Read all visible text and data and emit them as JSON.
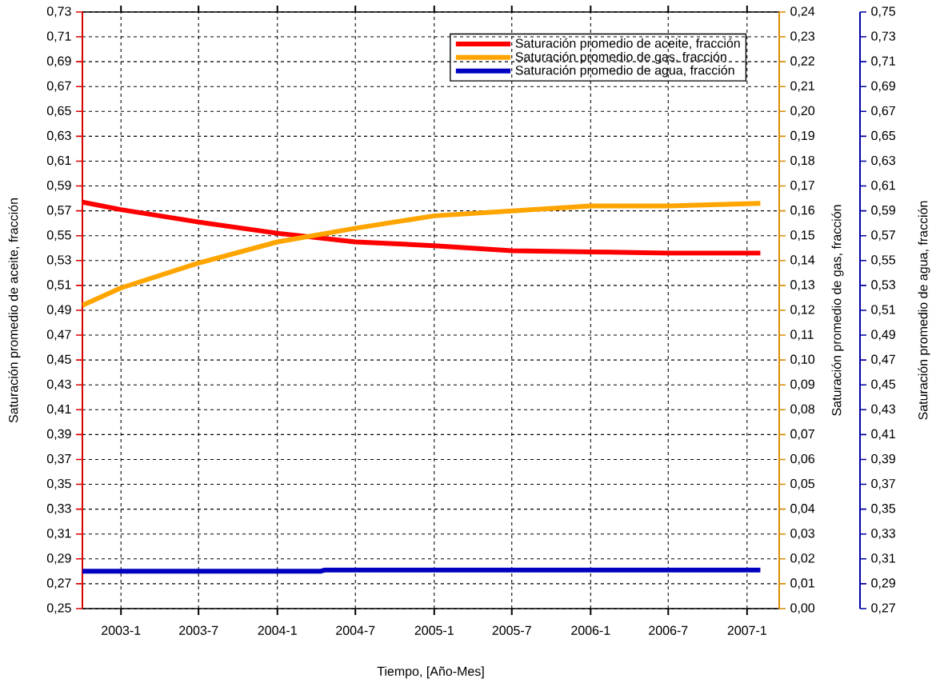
{
  "chart_data": {
    "type": "line",
    "xlabel": "Tiempo, [Año-Mes]",
    "ylabel": "Saturación promedio de aceite, fracción",
    "y2label": "Saturación promedio de gas, fracción",
    "y3label": "Saturación promedio de agua, fracción",
    "x": [
      "2002-10-03",
      "2003-01",
      "2003-07",
      "2004-01",
      "2004-07",
      "2005-01",
      "2005-07",
      "2006-01",
      "2006-07",
      "2007-02-01"
    ],
    "series": [
      {
        "name": "Saturación promedio de aceite, fracción",
        "color": "#ff0000",
        "values": [
          0.577,
          0.571,
          0.561,
          0.552,
          0.545,
          0.542,
          0.538,
          0.537,
          0.536,
          0.536
        ]
      },
      {
        "name": "Saturación promedio de gas, fracción",
        "color": "#ffa500",
        "axis": "y2",
        "values": [
          0.122,
          0.129,
          0.139,
          0.1475,
          0.153,
          0.158,
          0.16,
          0.162,
          0.162,
          0.163
        ]
      },
      {
        "name": "Saturación promedio de agua, fracción",
        "color": "#0000c0",
        "axis": "y3",
        "x": [
          "2002-10-03",
          "2004-04-10",
          "2004-04-20",
          "2007-02-01"
        ],
        "values": [
          0.3,
          0.3,
          0.301,
          0.301
        ]
      }
    ],
    "xlim": [
      "2002-10-03",
      "2007-03-17"
    ],
    "xticks": [
      {
        "value": "2003-01",
        "label": "2003-1"
      },
      {
        "value": "2003-07",
        "label": "2003-7"
      },
      {
        "value": "2004-01",
        "label": "2004-1"
      },
      {
        "value": "2004-07",
        "label": "2004-7"
      },
      {
        "value": "2005-01",
        "label": "2005-1"
      },
      {
        "value": "2005-07",
        "label": "2005-7"
      },
      {
        "value": "2006-01",
        "label": "2006-1"
      },
      {
        "value": "2006-07",
        "label": "2006-7"
      },
      {
        "value": "2007-01",
        "label": "2007-1"
      }
    ],
    "ylim": [
      0.25,
      0.73
    ],
    "yticks": [
      {
        "value": 0.25,
        "label": "0,25"
      },
      {
        "value": 0.27,
        "label": "0,27"
      },
      {
        "value": 0.29,
        "label": "0,29"
      },
      {
        "value": 0.31,
        "label": "0,31"
      },
      {
        "value": 0.33,
        "label": "0,33"
      },
      {
        "value": 0.35,
        "label": "0,35"
      },
      {
        "value": 0.37,
        "label": "0,37"
      },
      {
        "value": 0.39,
        "label": "0,39"
      },
      {
        "value": 0.41,
        "label": "0,41"
      },
      {
        "value": 0.43,
        "label": "0,43"
      },
      {
        "value": 0.45,
        "label": "0,45"
      },
      {
        "value": 0.47,
        "label": "0,47"
      },
      {
        "value": 0.49,
        "label": "0,49"
      },
      {
        "value": 0.51,
        "label": "0,51"
      },
      {
        "value": 0.53,
        "label": "0,53"
      },
      {
        "value": 0.55,
        "label": "0,55"
      },
      {
        "value": 0.57,
        "label": "0,57"
      },
      {
        "value": 0.59,
        "label": "0,59"
      },
      {
        "value": 0.61,
        "label": "0,61"
      },
      {
        "value": 0.63,
        "label": "0,63"
      },
      {
        "value": 0.65,
        "label": "0,65"
      },
      {
        "value": 0.67,
        "label": "0,67"
      },
      {
        "value": 0.69,
        "label": "0,69"
      },
      {
        "value": 0.71,
        "label": "0,71"
      },
      {
        "value": 0.73,
        "label": "0,73"
      }
    ],
    "y2lim": [
      0.0,
      0.24
    ],
    "y2ticks": [
      {
        "value": 0.0,
        "label": "0,00"
      },
      {
        "value": 0.01,
        "label": "0,01"
      },
      {
        "value": 0.02,
        "label": "0,02"
      },
      {
        "value": 0.03,
        "label": "0,03"
      },
      {
        "value": 0.04,
        "label": "0,04"
      },
      {
        "value": 0.05,
        "label": "0,05"
      },
      {
        "value": 0.06,
        "label": "0,06"
      },
      {
        "value": 0.07,
        "label": "0,07"
      },
      {
        "value": 0.08,
        "label": "0,08"
      },
      {
        "value": 0.09,
        "label": "0,09"
      },
      {
        "value": 0.1,
        "label": "0,10"
      },
      {
        "value": 0.11,
        "label": "0,11"
      },
      {
        "value": 0.12,
        "label": "0,12"
      },
      {
        "value": 0.13,
        "label": "0,13"
      },
      {
        "value": 0.14,
        "label": "0,14"
      },
      {
        "value": 0.15,
        "label": "0,15"
      },
      {
        "value": 0.16,
        "label": "0,16"
      },
      {
        "value": 0.17,
        "label": "0,17"
      },
      {
        "value": 0.18,
        "label": "0,18"
      },
      {
        "value": 0.19,
        "label": "0,19"
      },
      {
        "value": 0.2,
        "label": "0,20"
      },
      {
        "value": 0.21,
        "label": "0,21"
      },
      {
        "value": 0.22,
        "label": "0,22"
      },
      {
        "value": 0.23,
        "label": "0,23"
      },
      {
        "value": 0.24,
        "label": "0,24"
      }
    ],
    "y3lim": [
      0.27,
      0.75
    ],
    "y3ticks": [
      {
        "value": 0.27,
        "label": "0,27"
      },
      {
        "value": 0.29,
        "label": "0,29"
      },
      {
        "value": 0.31,
        "label": "0,31"
      },
      {
        "value": 0.33,
        "label": "0,33"
      },
      {
        "value": 0.35,
        "label": "0,35"
      },
      {
        "value": 0.37,
        "label": "0,37"
      },
      {
        "value": 0.39,
        "label": "0,39"
      },
      {
        "value": 0.41,
        "label": "0,41"
      },
      {
        "value": 0.43,
        "label": "0,43"
      },
      {
        "value": 0.45,
        "label": "0,45"
      },
      {
        "value": 0.47,
        "label": "0,47"
      },
      {
        "value": 0.49,
        "label": "0,49"
      },
      {
        "value": 0.51,
        "label": "0,51"
      },
      {
        "value": 0.53,
        "label": "0,53"
      },
      {
        "value": 0.55,
        "label": "0,55"
      },
      {
        "value": 0.57,
        "label": "0,57"
      },
      {
        "value": 0.59,
        "label": "0,59"
      },
      {
        "value": 0.61,
        "label": "0,61"
      },
      {
        "value": 0.63,
        "label": "0,63"
      },
      {
        "value": 0.65,
        "label": "0,65"
      },
      {
        "value": 0.67,
        "label": "0,67"
      },
      {
        "value": 0.69,
        "label": "0,69"
      },
      {
        "value": 0.71,
        "label": "0,71"
      },
      {
        "value": 0.73,
        "label": "0,73"
      },
      {
        "value": 0.75,
        "label": "0,75"
      }
    ],
    "grid": true,
    "legend": "top right",
    "line_style": "solid"
  }
}
